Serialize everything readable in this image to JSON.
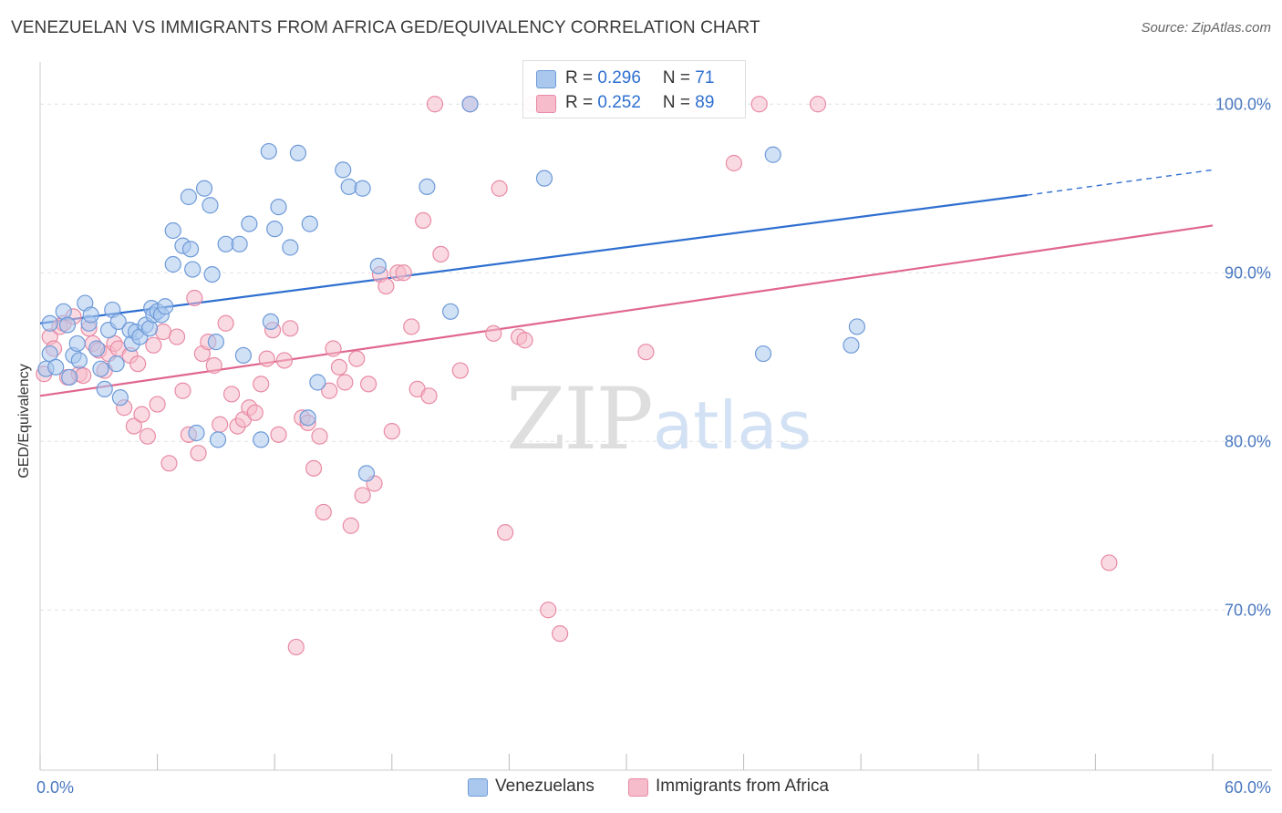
{
  "header": {
    "title": "VENEZUELAN VS IMMIGRANTS FROM AFRICA GED/EQUIVALENCY CORRELATION CHART",
    "source": "Source: ZipAtlas.com"
  },
  "watermark": {
    "zip": "ZIP",
    "atlas": "atlas"
  },
  "legend": {
    "rows": [
      {
        "r_label": "R = ",
        "r_value": "0.296",
        "n_label": "N = ",
        "n_value": "71"
      },
      {
        "r_label": "R = ",
        "r_value": "0.252",
        "n_label": "N = ",
        "n_value": "89"
      }
    ]
  },
  "bottom_legend": {
    "items": [
      {
        "label": "Venezuelans"
      },
      {
        "label": "Immigrants from Africa"
      }
    ]
  },
  "colors": {
    "blue_fill": "#aac8ee",
    "blue_stroke": "#6e9ad8",
    "blue_line": "#2f6fd0",
    "pink_fill": "#f6bccb",
    "pink_stroke": "#e88aa5",
    "pink_line": "#e0668e",
    "grid": "#e2e2e2",
    "tick_text": "#4a78c0"
  },
  "chart_data": {
    "type": "scatter",
    "title": "VENEZUELAN VS IMMIGRANTS FROM AFRICA GED/EQUIVALENCY CORRELATION CHART",
    "xlabel": "",
    "ylabel": "GED/Equivalency",
    "xlim": [
      0,
      60
    ],
    "ylim": [
      60.5,
      102.5
    ],
    "x_ticks": [
      0,
      6,
      12,
      18,
      24,
      30,
      36,
      42,
      48,
      54,
      60
    ],
    "x_tick_labels": [
      "0.0%",
      "",
      "",
      "",
      "",
      "",
      "",
      "",
      "",
      "",
      "60.0%"
    ],
    "y_ticks": [
      70,
      80,
      90,
      100
    ],
    "y_tick_labels": [
      "70.0%",
      "80.0%",
      "90.0%",
      "100.0%"
    ],
    "grid": true,
    "legend_placement": "top-center",
    "series": [
      {
        "name": "Venezuelans",
        "color": "#aac8ee",
        "trend": {
          "x0": 0,
          "y0": 87.0,
          "x1": 50.5,
          "y1": 94.6,
          "dash_to_x": 60,
          "dash_to_y": 96.1
        },
        "points": [
          [
            0.3,
            84.3
          ],
          [
            0.5,
            85.2
          ],
          [
            0.5,
            87.0
          ],
          [
            0.8,
            84.4
          ],
          [
            1.2,
            87.7
          ],
          [
            1.4,
            86.9
          ],
          [
            1.5,
            83.8
          ],
          [
            1.7,
            85.1
          ],
          [
            1.9,
            85.8
          ],
          [
            2.0,
            84.8
          ],
          [
            2.3,
            88.2
          ],
          [
            2.5,
            87.0
          ],
          [
            2.6,
            87.5
          ],
          [
            2.9,
            85.5
          ],
          [
            3.1,
            84.3
          ],
          [
            3.3,
            83.1
          ],
          [
            3.5,
            86.6
          ],
          [
            3.7,
            87.8
          ],
          [
            3.9,
            84.6
          ],
          [
            4.0,
            87.1
          ],
          [
            4.1,
            82.6
          ],
          [
            4.6,
            86.6
          ],
          [
            4.7,
            85.8
          ],
          [
            4.9,
            86.5
          ],
          [
            5.1,
            86.2
          ],
          [
            5.4,
            86.9
          ],
          [
            5.6,
            86.7
          ],
          [
            5.7,
            87.9
          ],
          [
            5.8,
            87.5
          ],
          [
            6.0,
            87.7
          ],
          [
            6.2,
            87.5
          ],
          [
            6.4,
            88.0
          ],
          [
            6.8,
            90.5
          ],
          [
            6.8,
            92.5
          ],
          [
            7.3,
            91.6
          ],
          [
            7.6,
            94.5
          ],
          [
            7.7,
            91.4
          ],
          [
            7.8,
            90.2
          ],
          [
            8.0,
            80.5
          ],
          [
            8.4,
            95.0
          ],
          [
            8.7,
            94.0
          ],
          [
            8.8,
            89.9
          ],
          [
            9.0,
            85.9
          ],
          [
            9.1,
            80.1
          ],
          [
            9.5,
            91.7
          ],
          [
            10.2,
            91.7
          ],
          [
            10.4,
            85.1
          ],
          [
            10.7,
            92.9
          ],
          [
            11.3,
            80.1
          ],
          [
            11.7,
            97.2
          ],
          [
            11.8,
            87.1
          ],
          [
            12.0,
            92.6
          ],
          [
            12.2,
            93.9
          ],
          [
            12.8,
            91.5
          ],
          [
            13.2,
            97.1
          ],
          [
            13.7,
            81.4
          ],
          [
            13.8,
            92.9
          ],
          [
            14.2,
            83.5
          ],
          [
            15.5,
            96.1
          ],
          [
            15.8,
            95.1
          ],
          [
            16.5,
            95.0
          ],
          [
            16.7,
            78.1
          ],
          [
            17.3,
            90.4
          ],
          [
            19.8,
            95.1
          ],
          [
            21.0,
            87.7
          ],
          [
            22.0,
            100.0
          ],
          [
            25.8,
            95.6
          ],
          [
            37.0,
            85.2
          ],
          [
            37.5,
            97.0
          ],
          [
            41.5,
            85.7
          ],
          [
            41.8,
            86.8
          ]
        ]
      },
      {
        "name": "Immigrants from Africa",
        "color": "#f6bccb",
        "trend": {
          "x0": 0,
          "y0": 82.7,
          "x1": 60,
          "y1": 92.8
        },
        "points": [
          [
            0.2,
            84.0
          ],
          [
            0.5,
            86.2
          ],
          [
            0.7,
            85.5
          ],
          [
            1.0,
            86.8
          ],
          [
            1.2,
            87.0
          ],
          [
            1.4,
            83.8
          ],
          [
            1.7,
            87.4
          ],
          [
            2.0,
            84.0
          ],
          [
            2.2,
            83.9
          ],
          [
            2.5,
            86.7
          ],
          [
            2.7,
            85.8
          ],
          [
            3.0,
            85.4
          ],
          [
            3.3,
            84.2
          ],
          [
            3.5,
            85.2
          ],
          [
            3.8,
            85.8
          ],
          [
            4.0,
            85.5
          ],
          [
            4.3,
            82.0
          ],
          [
            4.6,
            85.1
          ],
          [
            4.8,
            80.9
          ],
          [
            5.0,
            84.6
          ],
          [
            5.2,
            81.6
          ],
          [
            5.5,
            80.3
          ],
          [
            5.8,
            85.7
          ],
          [
            6.0,
            82.2
          ],
          [
            6.3,
            86.5
          ],
          [
            6.6,
            78.7
          ],
          [
            7.0,
            86.2
          ],
          [
            7.3,
            83.0
          ],
          [
            7.6,
            80.4
          ],
          [
            7.9,
            88.5
          ],
          [
            8.1,
            79.3
          ],
          [
            8.3,
            85.2
          ],
          [
            8.6,
            85.9
          ],
          [
            8.9,
            84.5
          ],
          [
            9.2,
            81.0
          ],
          [
            9.5,
            87.0
          ],
          [
            9.8,
            82.8
          ],
          [
            10.1,
            80.9
          ],
          [
            10.4,
            81.3
          ],
          [
            10.7,
            82.0
          ],
          [
            11.0,
            81.7
          ],
          [
            11.3,
            83.4
          ],
          [
            11.6,
            84.9
          ],
          [
            11.9,
            86.6
          ],
          [
            12.2,
            80.4
          ],
          [
            12.5,
            84.8
          ],
          [
            12.8,
            86.7
          ],
          [
            13.1,
            67.8
          ],
          [
            13.4,
            81.4
          ],
          [
            13.7,
            81.1
          ],
          [
            14.0,
            78.4
          ],
          [
            14.3,
            80.3
          ],
          [
            14.5,
            75.8
          ],
          [
            14.8,
            83.0
          ],
          [
            15.0,
            85.5
          ],
          [
            15.3,
            84.4
          ],
          [
            15.6,
            83.5
          ],
          [
            15.9,
            75.0
          ],
          [
            16.2,
            84.9
          ],
          [
            16.5,
            76.8
          ],
          [
            16.8,
            83.4
          ],
          [
            17.1,
            77.5
          ],
          [
            17.4,
            89.9
          ],
          [
            17.7,
            89.2
          ],
          [
            18.0,
            80.6
          ],
          [
            18.3,
            90.0
          ],
          [
            18.6,
            90.0
          ],
          [
            19.0,
            86.8
          ],
          [
            19.3,
            83.1
          ],
          [
            19.6,
            93.1
          ],
          [
            19.9,
            82.7
          ],
          [
            20.2,
            100.0
          ],
          [
            20.5,
            91.1
          ],
          [
            21.5,
            84.2
          ],
          [
            22.0,
            100.0
          ],
          [
            23.2,
            86.4
          ],
          [
            23.5,
            95.0
          ],
          [
            23.8,
            74.6
          ],
          [
            24.5,
            86.2
          ],
          [
            24.8,
            86.0
          ],
          [
            25.2,
            100.0
          ],
          [
            26.0,
            70.0
          ],
          [
            26.6,
            68.6
          ],
          [
            31.0,
            85.3
          ],
          [
            33.5,
            100.0
          ],
          [
            35.5,
            96.5
          ],
          [
            36.8,
            100.0
          ],
          [
            39.8,
            100.0
          ],
          [
            54.7,
            72.8
          ]
        ]
      }
    ]
  }
}
